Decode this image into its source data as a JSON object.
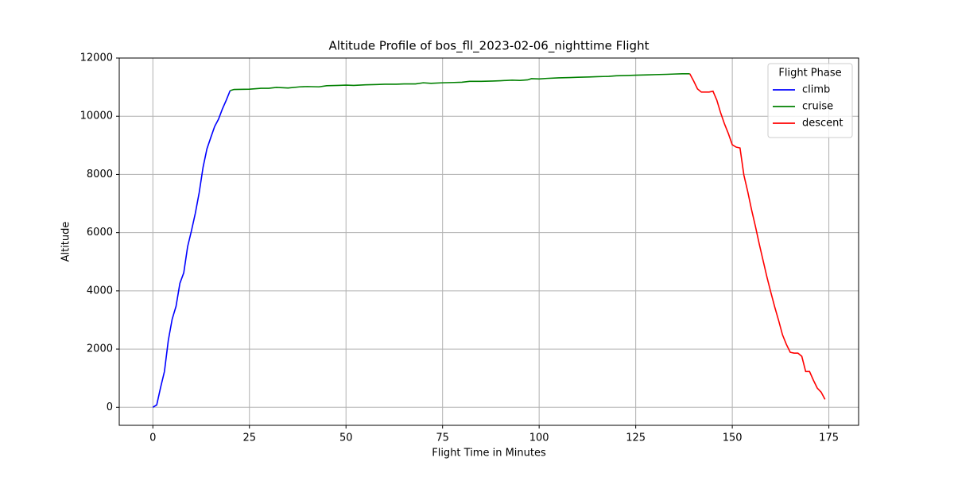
{
  "chart_data": {
    "type": "line",
    "title": "Altitude Profile of bos_fll_2023-02-06_nighttime Flight",
    "x_label": "Flight Time in Minutes",
    "y_label": "Altitude",
    "legend_title": "Flight Phase",
    "legend_position": "upper right",
    "grid": true,
    "xlim": [
      -8.7,
      182.7
    ],
    "ylim": [
      -620,
      12000
    ],
    "xticks": [
      0,
      25,
      50,
      75,
      100,
      125,
      150,
      175
    ],
    "yticks": [
      0,
      2000,
      4000,
      6000,
      8000,
      10000,
      12000
    ],
    "series": [
      {
        "name": "climb",
        "color": "#0000ff",
        "x": [
          0,
          1,
          2,
          3,
          4,
          5,
          6,
          7,
          8,
          9,
          10,
          11,
          12,
          13,
          14,
          15,
          16,
          17,
          18,
          19,
          20
        ],
        "values": [
          0,
          80,
          680,
          1230,
          2300,
          3030,
          3470,
          4260,
          4620,
          5520,
          6070,
          6670,
          7380,
          8250,
          8880,
          9270,
          9650,
          9900,
          10250,
          10550,
          10880
        ]
      },
      {
        "name": "cruise",
        "color": "#008000",
        "x": [
          20,
          21,
          25,
          28,
          30,
          32,
          35,
          38,
          40,
          43,
          45,
          48,
          50,
          52,
          55,
          58,
          60,
          63,
          65,
          68,
          70,
          72,
          75,
          78,
          80,
          82,
          85,
          88,
          90,
          93,
          95,
          97,
          98,
          100,
          102,
          105,
          108,
          110,
          113,
          115,
          118,
          120,
          123,
          125,
          128,
          130,
          133,
          135,
          137,
          139
        ],
        "values": [
          10880,
          10920,
          10930,
          10960,
          10960,
          10990,
          10970,
          11010,
          11020,
          11010,
          11050,
          11060,
          11070,
          11060,
          11080,
          11090,
          11100,
          11100,
          11110,
          11110,
          11150,
          11130,
          11150,
          11160,
          11170,
          11200,
          11200,
          11210,
          11220,
          11240,
          11230,
          11250,
          11290,
          11280,
          11300,
          11320,
          11330,
          11340,
          11350,
          11360,
          11370,
          11390,
          11400,
          11410,
          11420,
          11430,
          11440,
          11450,
          11460,
          11460
        ]
      },
      {
        "name": "descent",
        "color": "#ff0000",
        "x": [
          139,
          140,
          141,
          142,
          143,
          144,
          145,
          146,
          147,
          148,
          149,
          150,
          151,
          152,
          153,
          154,
          155,
          156,
          157,
          158,
          159,
          160,
          161,
          162,
          163,
          164,
          165,
          166,
          167,
          168,
          169,
          170,
          171,
          172,
          173,
          174
        ],
        "values": [
          11460,
          11210,
          10940,
          10830,
          10830,
          10830,
          10860,
          10550,
          10110,
          9730,
          9400,
          9020,
          8940,
          8910,
          7980,
          7410,
          6780,
          6210,
          5600,
          5030,
          4460,
          3940,
          3440,
          2980,
          2490,
          2160,
          1890,
          1860,
          1860,
          1750,
          1230,
          1230,
          930,
          660,
          520,
          270
        ]
      }
    ]
  }
}
